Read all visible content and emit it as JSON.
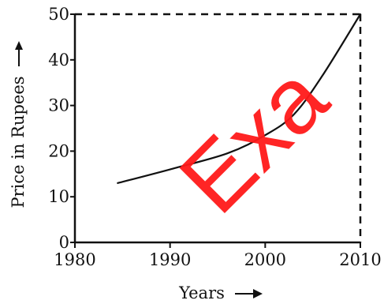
{
  "chart_data": {
    "type": "line",
    "xlabel": "Years",
    "ylabel": "Price in Rupees",
    "xlim": [
      1980,
      2010
    ],
    "ylim": [
      0,
      50
    ],
    "x_ticks": [
      1980,
      1990,
      2000,
      2010
    ],
    "y_ticks": [
      0,
      10,
      20,
      30,
      40,
      50
    ],
    "x_tick_labels": [
      "1980",
      "1990",
      "2000",
      "2010"
    ],
    "y_tick_labels": [
      "0",
      "10",
      "20",
      "30",
      "40",
      "50"
    ],
    "grid": false,
    "series": [
      {
        "x": [
          1984.5,
          1990,
          1996,
          2000,
          2003,
          2006,
          2010
        ],
        "y": [
          13,
          16,
          19.5,
          23.5,
          28,
          36.5,
          50
        ]
      }
    ],
    "reference_lines": [
      {
        "x": [
          1980,
          2010
        ],
        "y": [
          50,
          50
        ]
      },
      {
        "x": [
          2010,
          2010
        ],
        "y": [
          50,
          0
        ]
      }
    ],
    "line_color": "#111111",
    "watermark": {
      "text": "Exa",
      "color": "#ff1a1a"
    }
  }
}
